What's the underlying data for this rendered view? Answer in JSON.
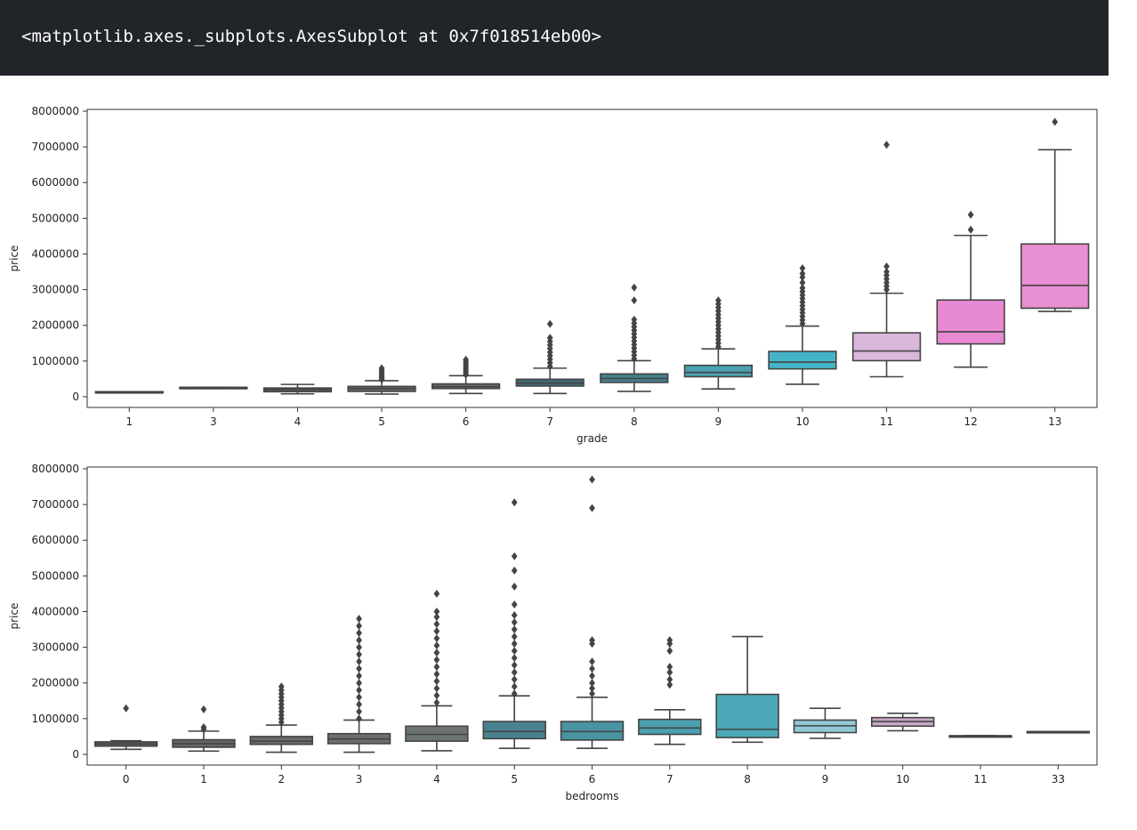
{
  "output": {
    "text": "<matplotlib.axes._subplots.AxesSubplot at 0x7f018514eb00>"
  },
  "chart_data": [
    {
      "type": "box",
      "xlabel": "grade",
      "ylabel": "price",
      "ylim": [
        -300000,
        8050000
      ],
      "yticks": [
        0,
        1000000,
        2000000,
        3000000,
        4000000,
        5000000,
        6000000,
        7000000,
        8000000
      ],
      "ytick_labels": [
        "0",
        "1000000",
        "2000000",
        "3000000",
        "4000000",
        "5000000",
        "6000000",
        "7000000",
        "8000000"
      ],
      "categories": [
        "1",
        "3",
        "4",
        "5",
        "6",
        "7",
        "8",
        "9",
        "10",
        "11",
        "12",
        "13"
      ],
      "boxes": [
        {
          "min": 142000,
          "q1": 142000,
          "median": 142000,
          "q3": 142000,
          "max": 142000,
          "outliers": [],
          "color": "#5f5f5f"
        },
        {
          "min": 262000,
          "q1": 262000,
          "median": 262000,
          "q3": 262000,
          "max": 262000,
          "outliers": [],
          "color": "#606060"
        },
        {
          "min": 80000,
          "q1": 140000,
          "median": 200000,
          "q3": 245000,
          "max": 345000,
          "outliers": [],
          "color": "#646464"
        },
        {
          "min": 75000,
          "q1": 150000,
          "median": 230000,
          "q3": 290000,
          "max": 450000,
          "outliers": [
            480000,
            520000,
            560000,
            600000,
            650000,
            700000,
            750000,
            800000
          ],
          "color": "#686868"
        },
        {
          "min": 90000,
          "q1": 230000,
          "median": 280000,
          "q3": 360000,
          "max": 590000,
          "outliers": [
            620000,
            680000,
            740000,
            800000,
            860000,
            920000,
            980000,
            1040000
          ],
          "color": "#6b6b6b"
        },
        {
          "min": 90000,
          "q1": 300000,
          "median": 380000,
          "q3": 490000,
          "max": 800000,
          "outliers": [
            850000,
            950000,
            1050000,
            1150000,
            1250000,
            1350000,
            1450000,
            1550000,
            1650000,
            2040000
          ],
          "color": "#3f6a75"
        },
        {
          "min": 150000,
          "q1": 400000,
          "median": 510000,
          "q3": 640000,
          "max": 1010000,
          "outliers": [
            1060000,
            1160000,
            1260000,
            1360000,
            1460000,
            1560000,
            1660000,
            1760000,
            1860000,
            1960000,
            2060000,
            2160000,
            2700000,
            3060000
          ],
          "color": "#447f8a"
        },
        {
          "min": 220000,
          "q1": 560000,
          "median": 680000,
          "q3": 880000,
          "max": 1340000,
          "outliers": [
            1400000,
            1500000,
            1600000,
            1700000,
            1800000,
            1900000,
            2000000,
            2100000,
            2200000,
            2300000,
            2400000,
            2500000,
            2600000,
            2700000
          ],
          "color": "#4aa0b0"
        },
        {
          "min": 350000,
          "q1": 780000,
          "median": 970000,
          "q3": 1270000,
          "max": 1980000,
          "outliers": [
            2050000,
            2150000,
            2250000,
            2350000,
            2450000,
            2550000,
            2650000,
            2750000,
            2850000,
            2950000,
            3050000,
            3200000,
            3350000,
            3450000,
            3600000
          ],
          "color": "#45b4c6"
        },
        {
          "min": 560000,
          "q1": 1010000,
          "median": 1280000,
          "q3": 1790000,
          "max": 2900000,
          "outliers": [
            3000000,
            3100000,
            3200000,
            3300000,
            3400000,
            3500000,
            3650000,
            7060000
          ],
          "color": "#dab8da"
        },
        {
          "min": 830000,
          "q1": 1480000,
          "median": 1820000,
          "q3": 2710000,
          "max": 4520000,
          "outliers": [
            4680000,
            5100000
          ],
          "color": "#e889d3"
        },
        {
          "min": 2390000,
          "q1": 2480000,
          "median": 3120000,
          "q3": 4280000,
          "max": 6920000,
          "outliers": [
            7700000
          ],
          "color": "#e98fd3"
        }
      ]
    },
    {
      "type": "box",
      "xlabel": "bedrooms",
      "ylabel": "price",
      "ylim": [
        -300000,
        8050000
      ],
      "yticks": [
        0,
        1000000,
        2000000,
        3000000,
        4000000,
        5000000,
        6000000,
        7000000,
        8000000
      ],
      "ytick_labels": [
        "0",
        "1000000",
        "2000000",
        "3000000",
        "4000000",
        "5000000",
        "6000000",
        "7000000",
        "8000000"
      ],
      "categories": [
        "0",
        "1",
        "2",
        "3",
        "4",
        "5",
        "6",
        "7",
        "8",
        "9",
        "10",
        "11",
        "33"
      ],
      "boxes": [
        {
          "min": 140000,
          "q1": 230000,
          "median": 290000,
          "q3": 350000,
          "max": 380000,
          "outliers": [
            1290000
          ],
          "color": "#5f5f5f"
        },
        {
          "min": 90000,
          "q1": 200000,
          "median": 300000,
          "q3": 410000,
          "max": 650000,
          "outliers": [
            700000,
            760000,
            1260000
          ],
          "color": "#666666"
        },
        {
          "min": 60000,
          "q1": 280000,
          "median": 370000,
          "q3": 500000,
          "max": 820000,
          "outliers": [
            900000,
            1000000,
            1100000,
            1200000,
            1300000,
            1400000,
            1500000,
            1600000,
            1700000,
            1800000,
            1900000
          ],
          "color": "#6a6a6a"
        },
        {
          "min": 60000,
          "q1": 300000,
          "median": 430000,
          "q3": 580000,
          "max": 960000,
          "outliers": [
            1000000,
            1200000,
            1400000,
            1600000,
            1800000,
            2000000,
            2200000,
            2400000,
            2600000,
            2800000,
            3000000,
            3200000,
            3400000,
            3600000,
            3800000
          ],
          "color": "#6e6e6e"
        },
        {
          "min": 100000,
          "q1": 370000,
          "median": 560000,
          "q3": 790000,
          "max": 1360000,
          "outliers": [
            1450000,
            1650000,
            1850000,
            2050000,
            2250000,
            2450000,
            2650000,
            2850000,
            3050000,
            3250000,
            3450000,
            3650000,
            3850000,
            4000000,
            4500000
          ],
          "color": "#6b7373"
        },
        {
          "min": 170000,
          "q1": 440000,
          "median": 640000,
          "q3": 920000,
          "max": 1640000,
          "outliers": [
            1700000,
            1900000,
            2100000,
            2300000,
            2500000,
            2700000,
            2900000,
            3100000,
            3300000,
            3500000,
            3700000,
            3900000,
            4200000,
            4700000,
            5150000,
            5550000,
            7060000
          ],
          "color": "#49828f"
        },
        {
          "min": 170000,
          "q1": 400000,
          "median": 640000,
          "q3": 920000,
          "max": 1600000,
          "outliers": [
            1700000,
            1850000,
            2000000,
            2200000,
            2400000,
            2600000,
            3100000,
            3200000,
            6900000,
            7700000
          ],
          "color": "#4993a2"
        },
        {
          "min": 280000,
          "q1": 560000,
          "median": 740000,
          "q3": 980000,
          "max": 1250000,
          "outliers": [
            1950000,
            2100000,
            2300000,
            2450000,
            2900000,
            3100000,
            3200000
          ],
          "color": "#4aa0b0"
        },
        {
          "min": 340000,
          "q1": 470000,
          "median": 700000,
          "q3": 1680000,
          "max": 3300000,
          "outliers": [],
          "color": "#4aa8b8"
        },
        {
          "min": 450000,
          "q1": 610000,
          "median": 800000,
          "q3": 960000,
          "max": 1290000,
          "outliers": [],
          "color": "#8fc9d6"
        },
        {
          "min": 660000,
          "q1": 790000,
          "median": 920000,
          "q3": 1030000,
          "max": 1150000,
          "outliers": [],
          "color": "#c9a9c9"
        },
        {
          "min": 520000,
          "q1": 520000,
          "median": 520000,
          "q3": 520000,
          "max": 520000,
          "outliers": [],
          "color": "#d9a8d5"
        },
        {
          "min": 640000,
          "q1": 640000,
          "median": 640000,
          "q3": 640000,
          "max": 640000,
          "outliers": [],
          "color": "#e089d0"
        }
      ]
    }
  ]
}
